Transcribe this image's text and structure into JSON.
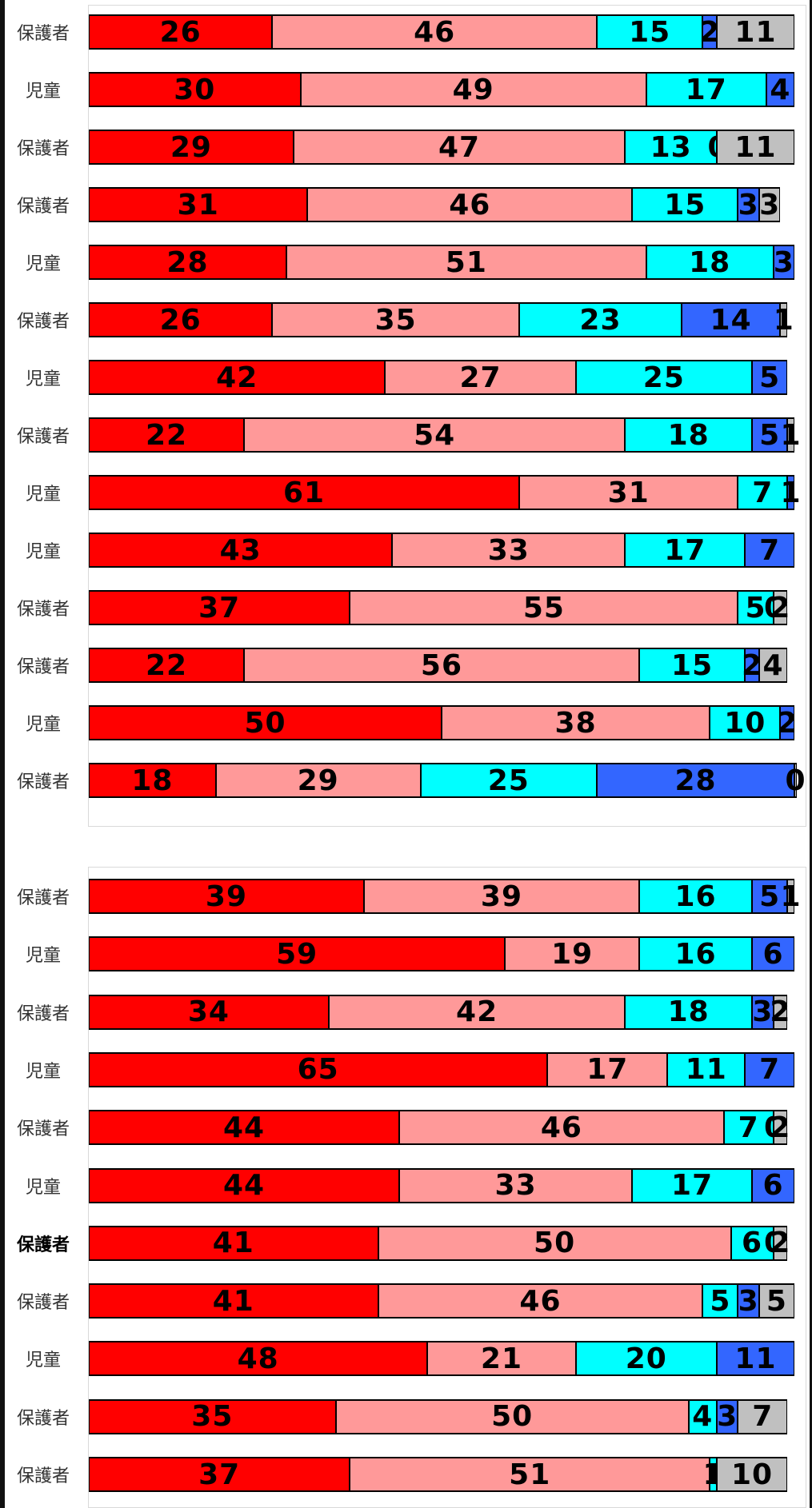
{
  "chart_data": {
    "type": "bar",
    "orientation": "horizontal",
    "stacked": true,
    "colors": [
      "#ff0000",
      "#ff9999",
      "#00ffff",
      "#3366ff",
      "#c0c0c0"
    ],
    "groups": [
      {
        "rows": [
          {
            "label": "保護者",
            "values": [
              26,
              46,
              15,
              2,
              11
            ]
          },
          {
            "label": "児童",
            "values": [
              30,
              49,
              17,
              4
            ]
          },
          {
            "label": "保護者",
            "values": [
              29,
              47,
              13,
              0,
              11
            ]
          },
          {
            "label": "保護者",
            "values": [
              31,
              46,
              15,
              3,
              3
            ]
          },
          {
            "label": "児童",
            "values": [
              28,
              51,
              18,
              3
            ]
          },
          {
            "label": "保護者",
            "values": [
              26,
              35,
              23,
              14,
              1
            ]
          },
          {
            "label": "児童",
            "values": [
              42,
              27,
              25,
              5
            ]
          },
          {
            "label": "保護者",
            "values": [
              22,
              54,
              18,
              5,
              1
            ]
          },
          {
            "label": "児童",
            "values": [
              61,
              31,
              7,
              1
            ]
          },
          {
            "label": "児童",
            "values": [
              43,
              33,
              17,
              7
            ]
          },
          {
            "label": "保護者",
            "values": [
              37,
              55,
              5,
              0,
              2
            ]
          },
          {
            "label": "保護者",
            "values": [
              22,
              56,
              15,
              2,
              4
            ]
          },
          {
            "label": "児童",
            "values": [
              50,
              38,
              10,
              2
            ]
          },
          {
            "label": "保護者",
            "values": [
              18,
              29,
              25,
              28,
              0
            ]
          }
        ]
      },
      {
        "rows": [
          {
            "label": "保護者",
            "values": [
              39,
              39,
              16,
              5,
              1
            ]
          },
          {
            "label": "児童",
            "values": [
              59,
              19,
              16,
              6
            ]
          },
          {
            "label": "保護者",
            "values": [
              34,
              42,
              18,
              3,
              2
            ]
          },
          {
            "label": "児童",
            "values": [
              65,
              17,
              11,
              7
            ]
          },
          {
            "label": "保護者",
            "values": [
              44,
              46,
              7,
              0,
              2
            ]
          },
          {
            "label": "児童",
            "values": [
              44,
              33,
              17,
              6
            ]
          },
          {
            "label": "保護者",
            "values": [
              41,
              50,
              6,
              0,
              2
            ]
          },
          {
            "label": "保護者",
            "values": [
              41,
              46,
              5,
              3,
              5
            ]
          },
          {
            "label": "児童",
            "values": [
              48,
              21,
              20,
              11
            ]
          },
          {
            "label": "保護者",
            "values": [
              35,
              50,
              4,
              3,
              7
            ]
          },
          {
            "label": "保護者",
            "values": [
              37,
              51,
              1,
              0,
              10
            ]
          }
        ]
      }
    ]
  }
}
